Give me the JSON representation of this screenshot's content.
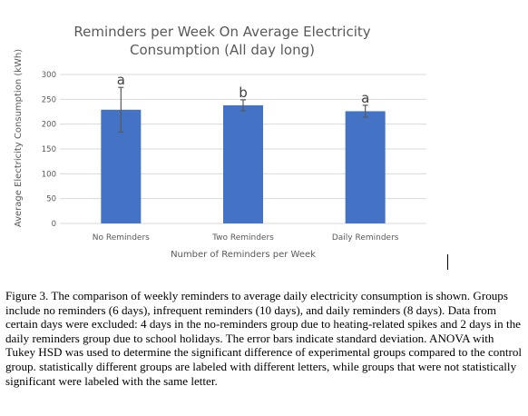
{
  "chart_data": {
    "type": "bar",
    "title_lines": [
      "Reminders per Week On Average Electricity",
      "Consumption (All day long)"
    ],
    "xlabel": "Number of Reminders per Week",
    "ylabel": "Average Electricity Consumption (kWh)",
    "categories": [
      "No Reminders",
      "Two Reminders",
      "Daily Reminders"
    ],
    "values": [
      229,
      238,
      226
    ],
    "error": [
      45,
      11,
      12
    ],
    "letters": [
      "a",
      "b",
      "a"
    ],
    "yticks": [
      0,
      50,
      100,
      150,
      200,
      250,
      300
    ],
    "ylim": [
      0,
      300
    ],
    "grid": true,
    "legend": "none",
    "bar_color": "#4472c4",
    "grid_color": "#d9d9d9"
  },
  "caption": "Figure 3. The comparison of weekly reminders to average daily electricity consumption is shown. Groups include no reminders (6 days), infrequent reminders (10 days), and daily reminders (8 days). Data from certain days were excluded: 4 days in the no-reminders group due to heating-related spikes and 2 days in the daily reminders group due to school holidays. The error bars indicate standard deviation. ANOVA with Tukey HSD was used to determine the significant difference of experimental groups compared to the control group. statistically different groups are labeled with different letters, while groups that were not statistically significant were labeled with the same letter."
}
